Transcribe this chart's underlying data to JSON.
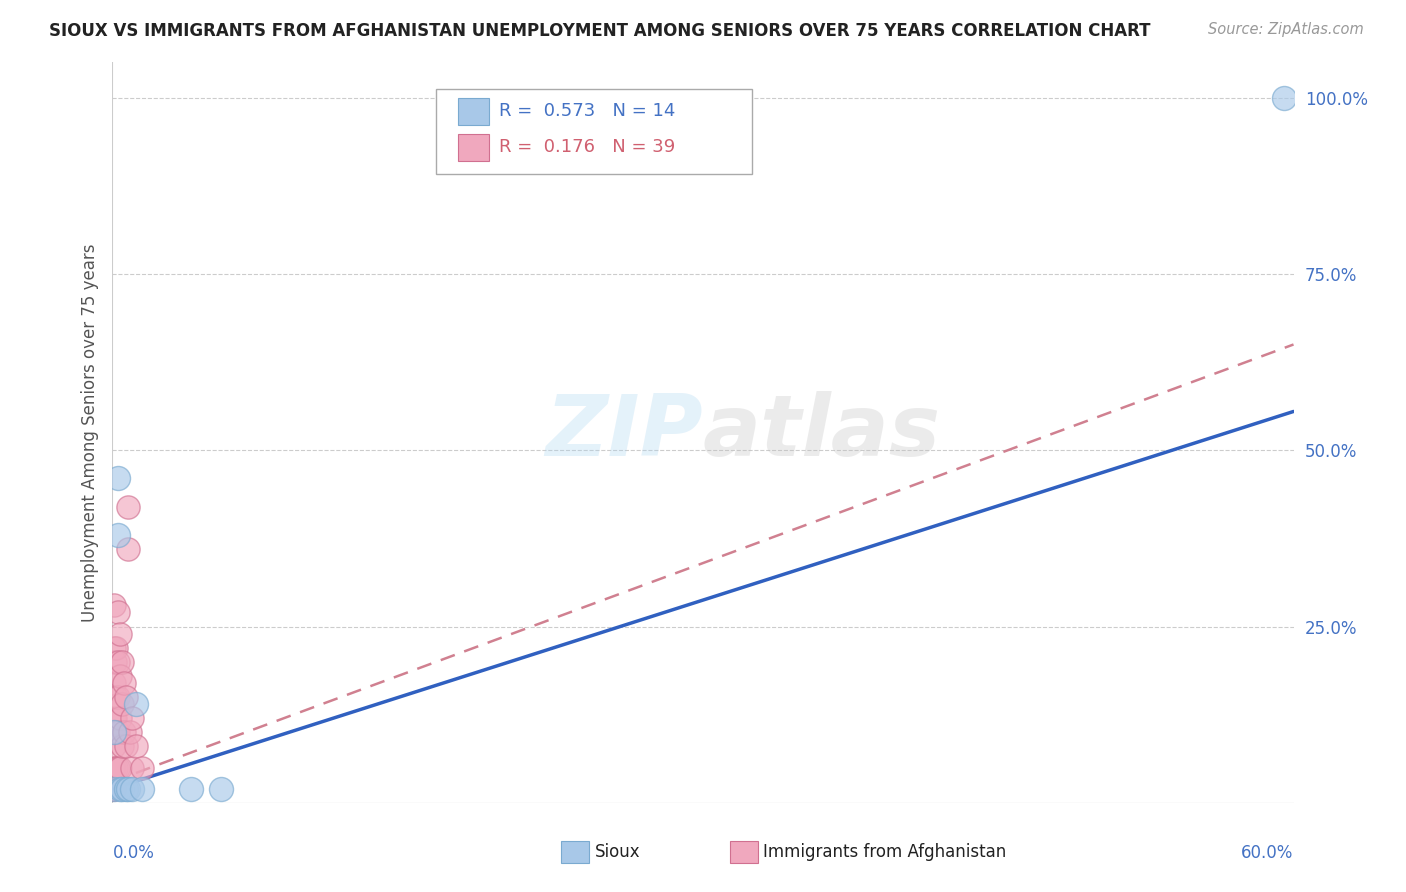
{
  "title": "SIOUX VS IMMIGRANTS FROM AFGHANISTAN UNEMPLOYMENT AMONG SENIORS OVER 75 YEARS CORRELATION CHART",
  "source": "Source: ZipAtlas.com",
  "ylabel": "Unemployment Among Seniors over 75 years",
  "xlim": [
    0,
    0.6
  ],
  "ylim": [
    0,
    1.05
  ],
  "legend1_R": "0.573",
  "legend1_N": "14",
  "legend2_R": "0.176",
  "legend2_N": "39",
  "sioux_color": "#a8c8e8",
  "sioux_edge_color": "#7aaad0",
  "afghanistan_color": "#f0a8be",
  "afghanistan_edge_color": "#d07090",
  "sioux_line_color": "#3060c0",
  "afghanistan_line_color": "#d08090",
  "background_color": "#ffffff",
  "grid_color": "#cccccc",
  "sioux_scatter_x": [
    0.001,
    0.001,
    0.003,
    0.003,
    0.004,
    0.005,
    0.007,
    0.008,
    0.01,
    0.012,
    0.015,
    0.04,
    0.055,
    0.595
  ],
  "sioux_scatter_y": [
    0.02,
    0.1,
    0.38,
    0.46,
    0.02,
    0.02,
    0.02,
    0.02,
    0.02,
    0.14,
    0.02,
    0.02,
    0.02,
    1.0
  ],
  "afghanistan_scatter_x": [
    0.0005,
    0.0005,
    0.001,
    0.001,
    0.001,
    0.001,
    0.001,
    0.001,
    0.001,
    0.0015,
    0.0015,
    0.002,
    0.002,
    0.002,
    0.002,
    0.0025,
    0.003,
    0.003,
    0.003,
    0.003,
    0.003,
    0.004,
    0.004,
    0.004,
    0.004,
    0.005,
    0.005,
    0.005,
    0.006,
    0.006,
    0.007,
    0.007,
    0.008,
    0.008,
    0.009,
    0.01,
    0.01,
    0.012,
    0.015
  ],
  "afghanistan_scatter_y": [
    0.02,
    0.05,
    0.02,
    0.05,
    0.08,
    0.12,
    0.17,
    0.22,
    0.28,
    0.12,
    0.2,
    0.05,
    0.1,
    0.15,
    0.22,
    0.1,
    0.05,
    0.1,
    0.15,
    0.2,
    0.27,
    0.05,
    0.12,
    0.18,
    0.24,
    0.08,
    0.14,
    0.2,
    0.1,
    0.17,
    0.08,
    0.15,
    0.36,
    0.42,
    0.1,
    0.05,
    0.12,
    0.08,
    0.05
  ],
  "sioux_line_x0": 0.0,
  "sioux_line_y0": 0.02,
  "sioux_line_x1": 0.6,
  "sioux_line_y1": 0.555,
  "afg_line_x0": 0.0,
  "afg_line_y0": 0.03,
  "afg_line_x1": 0.6,
  "afg_line_y1": 0.65
}
